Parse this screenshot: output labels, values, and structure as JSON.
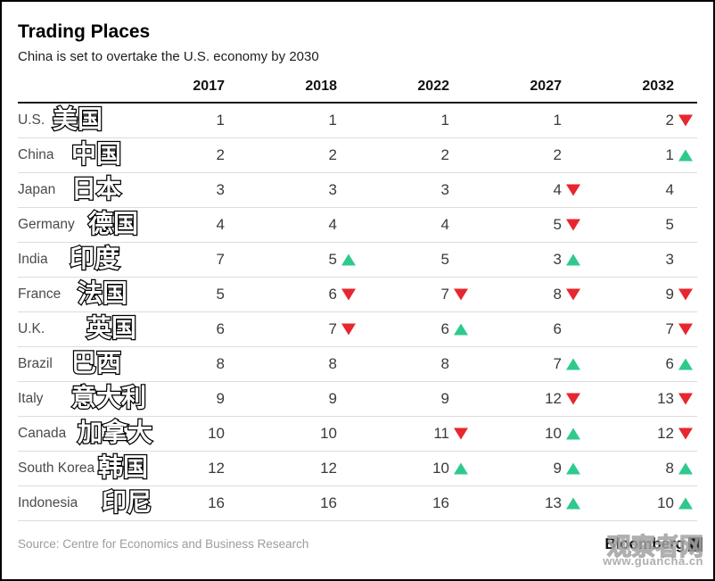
{
  "header": {
    "title": "Trading Places",
    "subtitle": "China is set to overtake the U.S. economy by 2030"
  },
  "chart_data": {
    "type": "table",
    "title": "Trading Places",
    "subtitle": "China is set to overtake the U.S. economy by 2030",
    "columns": [
      "2017",
      "2018",
      "2022",
      "2027",
      "2032"
    ],
    "legend": {
      "up_triangle": "rank improved",
      "down_triangle": "rank declined"
    },
    "rows": [
      {
        "country": "U.S.",
        "zh": "美国",
        "values": [
          {
            "n": 1
          },
          {
            "n": 1
          },
          {
            "n": 1
          },
          {
            "n": 1
          },
          {
            "n": 2,
            "dir": "down"
          }
        ]
      },
      {
        "country": "China",
        "zh": "中国",
        "values": [
          {
            "n": 2
          },
          {
            "n": 2
          },
          {
            "n": 2
          },
          {
            "n": 2
          },
          {
            "n": 1,
            "dir": "up"
          }
        ]
      },
      {
        "country": "Japan",
        "zh": "日本",
        "values": [
          {
            "n": 3
          },
          {
            "n": 3
          },
          {
            "n": 3
          },
          {
            "n": 4,
            "dir": "down"
          },
          {
            "n": 4
          }
        ]
      },
      {
        "country": "Germany",
        "zh": "德国",
        "values": [
          {
            "n": 4
          },
          {
            "n": 4
          },
          {
            "n": 4
          },
          {
            "n": 5,
            "dir": "down"
          },
          {
            "n": 5
          }
        ]
      },
      {
        "country": "India",
        "zh": "印度",
        "values": [
          {
            "n": 7
          },
          {
            "n": 5,
            "dir": "up"
          },
          {
            "n": 5
          },
          {
            "n": 3,
            "dir": "up"
          },
          {
            "n": 3
          }
        ]
      },
      {
        "country": "France",
        "zh": "法国",
        "values": [
          {
            "n": 5
          },
          {
            "n": 6,
            "dir": "down"
          },
          {
            "n": 7,
            "dir": "down"
          },
          {
            "n": 8,
            "dir": "down"
          },
          {
            "n": 9,
            "dir": "down"
          }
        ]
      },
      {
        "country": "U.K.",
        "zh": "英国",
        "values": [
          {
            "n": 6
          },
          {
            "n": 7,
            "dir": "down"
          },
          {
            "n": 6,
            "dir": "up"
          },
          {
            "n": 6
          },
          {
            "n": 7,
            "dir": "down"
          }
        ]
      },
      {
        "country": "Brazil",
        "zh": "巴西",
        "values": [
          {
            "n": 8
          },
          {
            "n": 8
          },
          {
            "n": 8
          },
          {
            "n": 7,
            "dir": "up"
          },
          {
            "n": 6,
            "dir": "up"
          }
        ]
      },
      {
        "country": "Italy",
        "zh": "意大利",
        "values": [
          {
            "n": 9
          },
          {
            "n": 9
          },
          {
            "n": 9
          },
          {
            "n": 12,
            "dir": "down"
          },
          {
            "n": 13,
            "dir": "down"
          }
        ]
      },
      {
        "country": "Canada",
        "zh": "加拿大",
        "values": [
          {
            "n": 10
          },
          {
            "n": 10
          },
          {
            "n": 11,
            "dir": "down"
          },
          {
            "n": 10,
            "dir": "up"
          },
          {
            "n": 12,
            "dir": "down"
          }
        ]
      },
      {
        "country": "South Korea",
        "zh": "韩国",
        "values": [
          {
            "n": 12
          },
          {
            "n": 12
          },
          {
            "n": 10,
            "dir": "up"
          },
          {
            "n": 9,
            "dir": "up"
          },
          {
            "n": 8,
            "dir": "up"
          }
        ]
      },
      {
        "country": "Indonesia",
        "zh": "印尼",
        "values": [
          {
            "n": 16
          },
          {
            "n": 16
          },
          {
            "n": 16
          },
          {
            "n": 13,
            "dir": "up"
          },
          {
            "n": 10,
            "dir": "up"
          }
        ]
      }
    ]
  },
  "colors": {
    "up": "#2fc98e",
    "down": "#e8262e",
    "header_rule": "#1a1a1a",
    "row_rule": "#dcdcdc"
  },
  "footer": {
    "source": "Source: Centre for Economics and Business Research",
    "brand": "Bloomberg"
  },
  "watermark": {
    "text": "观察者网",
    "url": "www.guancha.cn"
  }
}
